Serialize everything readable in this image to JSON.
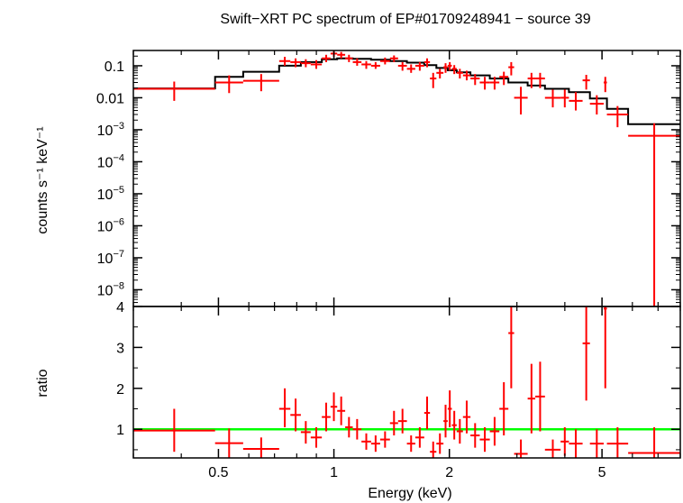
{
  "title": "Swift−XRT PC spectrum of EP#01709248941 − source 39",
  "colors": {
    "data": "#ff0000",
    "model": "#000000",
    "unity": "#00ff00",
    "axes": "#000000"
  },
  "chart_data": [
    {
      "type": "scatter",
      "panel": "spectrum",
      "ylabel": "counts s⁻¹ keV⁻¹",
      "xscale": "log",
      "yscale": "log",
      "xlim": [
        0.3,
        8.0
      ],
      "ylim": [
        3e-09,
        0.3
      ],
      "ytick_labels": [
        {
          "v": 0.1,
          "t": "0.1"
        },
        {
          "v": 0.01,
          "t": "0.01"
        },
        {
          "v": 0.001,
          "b": "10",
          "e": "−3"
        },
        {
          "v": 0.0001,
          "b": "10",
          "e": "−4"
        },
        {
          "v": 1e-05,
          "b": "10",
          "e": "−5"
        },
        {
          "v": 1e-06,
          "b": "10",
          "e": "−6"
        },
        {
          "v": 1e-07,
          "b": "10",
          "e": "−7"
        },
        {
          "v": 1e-08,
          "b": "10",
          "e": "−8"
        }
      ],
      "series": [
        {
          "kind": "data",
          "points": [
            [
              0.3,
              0.49,
              0.019,
              0.008,
              0.032
            ],
            [
              0.49,
              0.58,
              0.03,
              0.014,
              0.05
            ],
            [
              0.58,
              0.72,
              0.034,
              0.016,
              0.055
            ],
            [
              0.72,
              0.77,
              0.14,
              0.1,
              0.19
            ],
            [
              0.77,
              0.82,
              0.13,
              0.09,
              0.17
            ],
            [
              0.82,
              0.87,
              0.12,
              0.09,
              0.16
            ],
            [
              0.87,
              0.93,
              0.11,
              0.08,
              0.15
            ],
            [
              0.93,
              0.98,
              0.17,
              0.13,
              0.22
            ],
            [
              0.98,
              1.02,
              0.24,
              0.19,
              0.3
            ],
            [
              1.02,
              1.07,
              0.22,
              0.17,
              0.27
            ],
            [
              1.07,
              1.12,
              0.17,
              0.13,
              0.22
            ],
            [
              1.12,
              1.18,
              0.13,
              0.1,
              0.17
            ],
            [
              1.18,
              1.25,
              0.11,
              0.08,
              0.14
            ],
            [
              1.25,
              1.32,
              0.1,
              0.08,
              0.13
            ],
            [
              1.32,
              1.4,
              0.14,
              0.11,
              0.18
            ],
            [
              1.4,
              1.47,
              0.17,
              0.13,
              0.21
            ],
            [
              1.47,
              1.55,
              0.1,
              0.07,
              0.13
            ],
            [
              1.55,
              1.63,
              0.08,
              0.06,
              0.11
            ],
            [
              1.63,
              1.72,
              0.1,
              0.07,
              0.13
            ],
            [
              1.72,
              1.78,
              0.13,
              0.09,
              0.17
            ],
            [
              1.78,
              1.85,
              0.04,
              0.02,
              0.06
            ],
            [
              1.85,
              1.93,
              0.06,
              0.04,
              0.08
            ],
            [
              1.93,
              1.98,
              0.09,
              0.06,
              0.12
            ],
            [
              1.98,
              2.03,
              0.1,
              0.07,
              0.13
            ],
            [
              2.03,
              2.09,
              0.08,
              0.055,
              0.105
            ],
            [
              2.09,
              2.17,
              0.06,
              0.04,
              0.08
            ],
            [
              2.17,
              2.27,
              0.05,
              0.035,
              0.07
            ],
            [
              2.27,
              2.4,
              0.04,
              0.025,
              0.055
            ],
            [
              2.4,
              2.55,
              0.03,
              0.018,
              0.045
            ],
            [
              2.55,
              2.7,
              0.03,
              0.018,
              0.045
            ],
            [
              2.7,
              2.85,
              0.045,
              0.025,
              0.065
            ],
            [
              2.85,
              2.95,
              0.09,
              0.05,
              0.13
            ],
            [
              2.95,
              3.2,
              0.01,
              0.003,
              0.022
            ],
            [
              3.2,
              3.35,
              0.04,
              0.02,
              0.06
            ],
            [
              3.35,
              3.55,
              0.04,
              0.02,
              0.06
            ],
            [
              3.55,
              3.9,
              0.01,
              0.005,
              0.018
            ],
            [
              3.9,
              4.1,
              0.01,
              0.005,
              0.018
            ],
            [
              4.1,
              4.45,
              0.008,
              0.004,
              0.015
            ],
            [
              4.45,
              4.65,
              0.035,
              0.018,
              0.052
            ],
            [
              4.65,
              5.05,
              0.0065,
              0.003,
              0.012
            ],
            [
              5.05,
              5.15,
              0.03,
              0.015,
              0.045
            ],
            [
              5.15,
              5.85,
              0.003,
              0.0012,
              0.0055
            ],
            [
              5.85,
              8.0,
              0.00065,
              0.0,
              0.0016
            ]
          ]
        },
        {
          "kind": "model",
          "steps": [
            [
              0.3,
              0.49,
              0.0195
            ],
            [
              0.49,
              0.58,
              0.045
            ],
            [
              0.58,
              0.72,
              0.065
            ],
            [
              0.72,
              0.82,
              0.1
            ],
            [
              0.82,
              0.93,
              0.13
            ],
            [
              0.93,
              1.02,
              0.16
            ],
            [
              1.02,
              1.12,
              0.17
            ],
            [
              1.12,
              1.25,
              0.165
            ],
            [
              1.25,
              1.4,
              0.155
            ],
            [
              1.4,
              1.55,
              0.14
            ],
            [
              1.55,
              1.72,
              0.125
            ],
            [
              1.72,
              1.85,
              0.105
            ],
            [
              1.85,
              1.98,
              0.085
            ],
            [
              1.98,
              2.09,
              0.072
            ],
            [
              2.09,
              2.27,
              0.062
            ],
            [
              2.27,
              2.55,
              0.05
            ],
            [
              2.55,
              2.85,
              0.04
            ],
            [
              2.85,
              3.2,
              0.03
            ],
            [
              3.2,
              3.55,
              0.024
            ],
            [
              3.55,
              4.1,
              0.019
            ],
            [
              4.1,
              4.65,
              0.015
            ],
            [
              4.65,
              5.15,
              0.0095
            ],
            [
              5.15,
              5.85,
              0.0045
            ],
            [
              5.85,
              8.0,
              0.0015
            ]
          ]
        }
      ]
    },
    {
      "type": "scatter",
      "panel": "ratio",
      "ylabel": "ratio",
      "xlabel": "Energy (keV)",
      "xscale": "log",
      "xlim": [
        0.3,
        8.0
      ],
      "ylim": [
        0.3,
        4.0
      ],
      "xtick_labels": [
        {
          "v": 0.5,
          "t": "0.5"
        },
        {
          "v": 1,
          "t": "1"
        },
        {
          "v": 2,
          "t": "2"
        },
        {
          "v": 5,
          "t": "5"
        }
      ],
      "ytick_labels": [
        {
          "v": 1,
          "t": "1"
        },
        {
          "v": 2,
          "t": "2"
        },
        {
          "v": 3,
          "t": "3"
        },
        {
          "v": 4,
          "t": "4"
        }
      ],
      "reference_line": 1.0,
      "points": [
        [
          0.3,
          0.49,
          0.97,
          0.45,
          1.5
        ],
        [
          0.49,
          0.58,
          0.66,
          0.3,
          1.02
        ],
        [
          0.58,
          0.72,
          0.52,
          0.25,
          0.8
        ],
        [
          0.72,
          0.77,
          1.5,
          1.05,
          2.0
        ],
        [
          0.77,
          0.82,
          1.35,
          0.95,
          1.75
        ],
        [
          0.82,
          0.87,
          0.93,
          0.65,
          1.2
        ],
        [
          0.87,
          0.93,
          0.8,
          0.55,
          1.05
        ],
        [
          0.93,
          0.98,
          1.3,
          0.95,
          1.65
        ],
        [
          0.98,
          1.02,
          1.55,
          1.2,
          1.9
        ],
        [
          1.02,
          1.07,
          1.45,
          1.1,
          1.8
        ],
        [
          1.07,
          1.12,
          1.05,
          0.8,
          1.3
        ],
        [
          1.12,
          1.18,
          1.0,
          0.75,
          1.25
        ],
        [
          1.18,
          1.25,
          0.7,
          0.5,
          0.9
        ],
        [
          1.25,
          1.32,
          0.65,
          0.45,
          0.85
        ],
        [
          1.32,
          1.4,
          0.75,
          0.55,
          0.95
        ],
        [
          1.4,
          1.47,
          1.15,
          0.85,
          1.45
        ],
        [
          1.47,
          1.55,
          1.2,
          0.9,
          1.5
        ],
        [
          1.55,
          1.63,
          0.65,
          0.45,
          0.85
        ],
        [
          1.63,
          1.72,
          0.8,
          0.55,
          1.05
        ],
        [
          1.72,
          1.78,
          1.4,
          1.0,
          1.8
        ],
        [
          1.78,
          1.85,
          0.45,
          0.2,
          0.7
        ],
        [
          1.85,
          1.93,
          0.65,
          0.4,
          0.9
        ],
        [
          1.93,
          1.98,
          1.2,
          0.8,
          1.6
        ],
        [
          1.98,
          2.03,
          1.5,
          1.05,
          1.95
        ],
        [
          2.03,
          2.09,
          1.1,
          0.75,
          1.45
        ],
        [
          2.09,
          2.17,
          0.95,
          0.65,
          1.25
        ],
        [
          2.17,
          2.27,
          1.3,
          0.9,
          1.7
        ],
        [
          2.27,
          2.4,
          0.85,
          0.55,
          1.15
        ],
        [
          2.4,
          2.55,
          0.75,
          0.45,
          1.05
        ],
        [
          2.55,
          2.7,
          0.95,
          0.6,
          1.3
        ],
        [
          2.7,
          2.85,
          1.5,
          0.85,
          2.15
        ],
        [
          2.85,
          2.95,
          3.35,
          2.0,
          4.7
        ],
        [
          2.95,
          3.2,
          0.4,
          0.1,
          0.75
        ],
        [
          3.2,
          3.35,
          1.75,
          0.9,
          2.6
        ],
        [
          3.35,
          3.55,
          1.8,
          0.95,
          2.65
        ],
        [
          3.55,
          3.9,
          0.5,
          0.25,
          0.75
        ],
        [
          3.9,
          4.1,
          0.7,
          0.35,
          1.05
        ],
        [
          4.1,
          4.45,
          0.65,
          0.3,
          1.0
        ],
        [
          4.45,
          4.65,
          3.1,
          1.7,
          4.5
        ],
        [
          4.65,
          5.05,
          0.65,
          0.3,
          1.0
        ],
        [
          5.05,
          5.15,
          3.95,
          2.0,
          5.9
        ],
        [
          5.15,
          5.85,
          0.65,
          0.25,
          1.05
        ],
        [
          5.85,
          8.0,
          0.42,
          0.0,
          1.05
        ]
      ]
    }
  ]
}
